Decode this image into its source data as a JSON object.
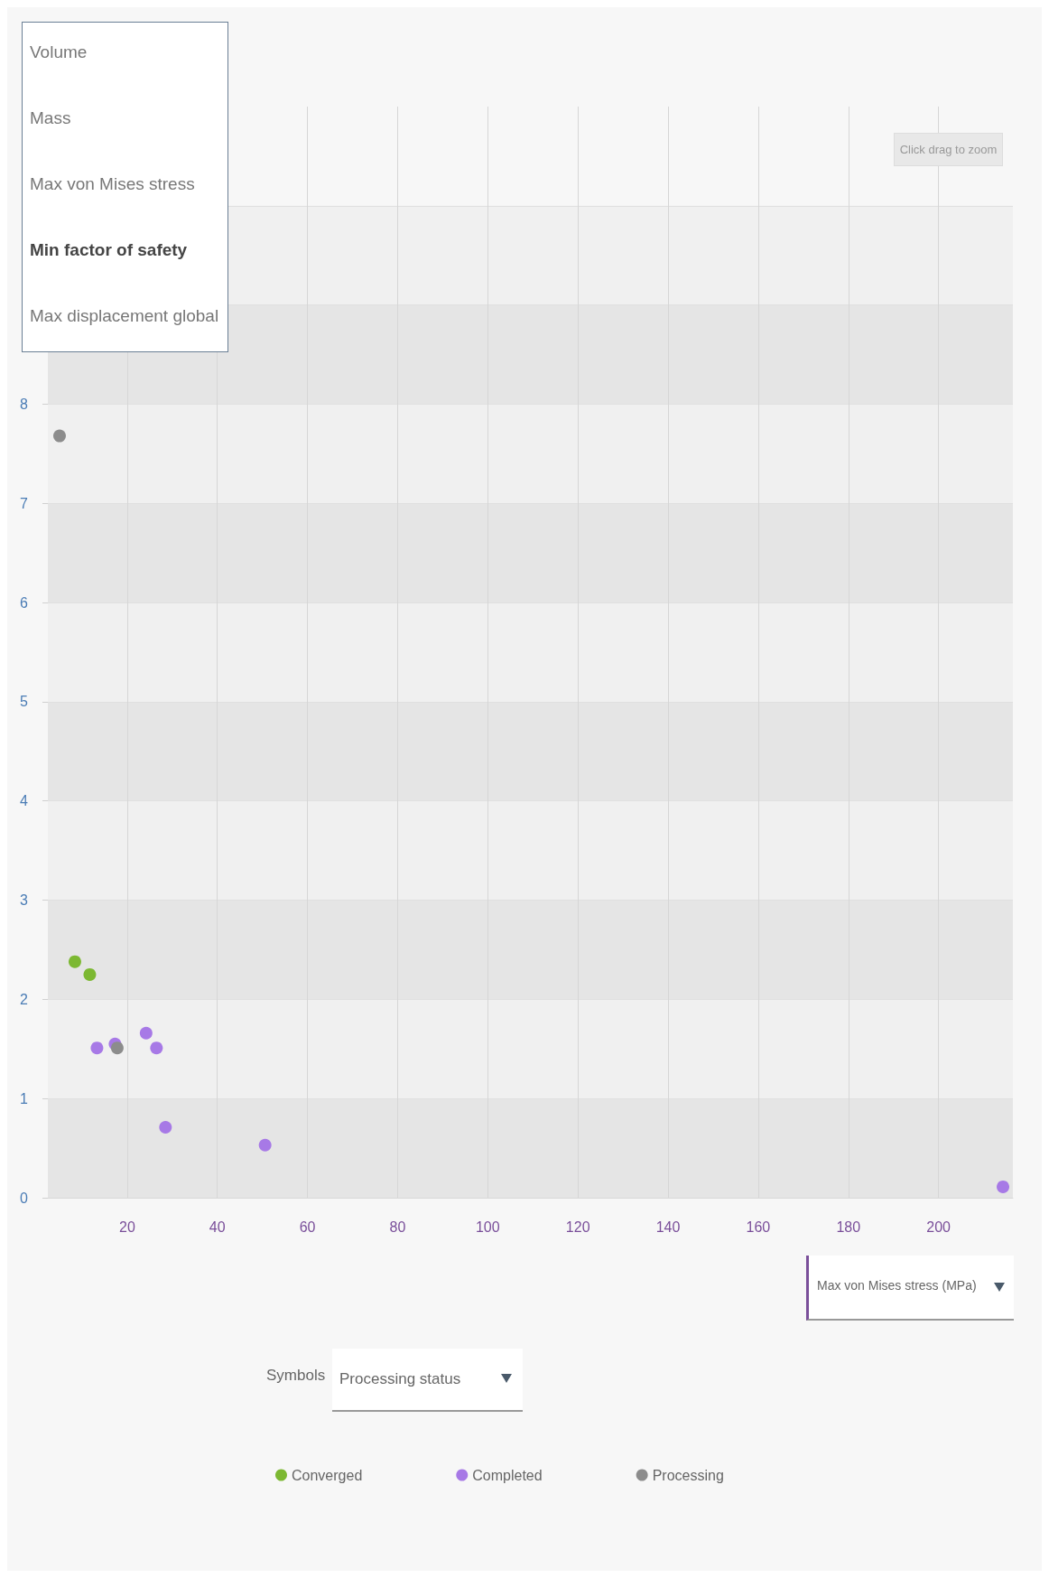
{
  "chart_data": {
    "type": "scatter",
    "xlabel": "Max von Mises stress (MPa)",
    "ylabel": "Min factor of safety",
    "legend_title": "Processing status",
    "annotations": [
      "Volume",
      "Mass",
      "Max von Mises stress",
      "Max displacement global",
      "Click drag to zoom",
      "Symbols"
    ],
    "xlim": [
      2.4,
      216.5
    ],
    "xticks": [
      20,
      40,
      60,
      80,
      100,
      120,
      140,
      160,
      180,
      200
    ],
    "ylim": [
      0,
      11
    ],
    "yticks": [
      0,
      1,
      2,
      3,
      4,
      5,
      6,
      7,
      8,
      {
        "value": 9,
        "label": null
      },
      {
        "value": 10,
        "label": null
      }
    ],
    "grid": true,
    "legend": "bottom",
    "marker": "circle",
    "series": [
      {
        "name": "Converged",
        "color": "#7cb832",
        "x": [
          8.4,
          11.7
        ],
        "values": [
          2.38,
          2.25
        ]
      },
      {
        "name": "Completed",
        "color": "#a779e6",
        "x": [
          13.3,
          17.3,
          24.2,
          26.5,
          28.5,
          50.6,
          214.3
        ],
        "values": [
          1.51,
          1.55,
          1.66,
          1.51,
          0.71,
          0.53,
          0.11
        ]
      },
      {
        "name": "Processing",
        "color": "#8c8c8c",
        "x": [
          5.0,
          17.8
        ],
        "values": [
          7.68,
          1.51
        ]
      }
    ]
  }
}
